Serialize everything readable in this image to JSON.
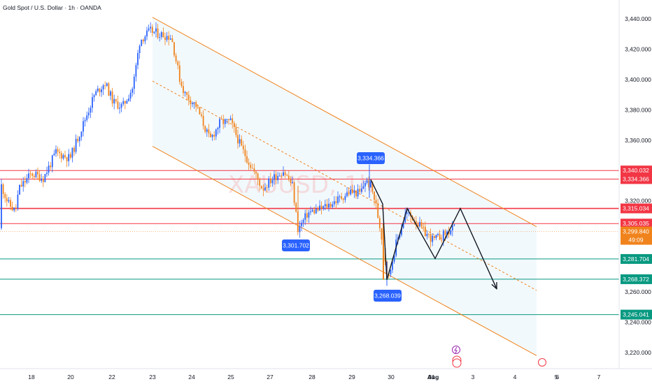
{
  "header": {
    "symbol_line": "Gold Spot / U.S. Dollar · 1h · OANDA"
  },
  "watermark": "XAUUSD, 1h",
  "colors": {
    "up": "#2962ff",
    "down": "#f0831c",
    "resistance": "#f23645",
    "support": "#089981",
    "channel": "#f0831c",
    "callout": "#2962ff",
    "current": "#f0831c"
  },
  "chart_data": {
    "type": "candlestick",
    "title": "",
    "timeframe": "1h",
    "ylim": [
      3210,
      3446
    ],
    "y_ticks": [
      3220,
      3240,
      3260,
      3280,
      3300,
      3320,
      3340,
      3360,
      3380,
      3400,
      3420,
      3440
    ],
    "y_tick_labels": [
      "3,220.000",
      "3,240.000",
      "3,260.000",
      "3,280.000",
      "3,300.000",
      "3,320.000",
      "3,340.000",
      "3,360.000",
      "3,380.000",
      "3,400.000",
      "3,420.000",
      "3,440.000"
    ],
    "x_ticks": [
      "18",
      "20",
      "22",
      "23",
      "24",
      "25",
      "27",
      "28",
      "29",
      "30",
      "31",
      "Aug",
      "3",
      "4",
      "5",
      "6",
      "7"
    ],
    "price_line_labels": [
      {
        "value": 3340.032,
        "label": "3,340.032",
        "kind": "resistance"
      },
      {
        "value": 3334.366,
        "label": "3,334.366",
        "kind": "resistance"
      },
      {
        "value": 3315.034,
        "label": "3,315.034",
        "kind": "resistance"
      },
      {
        "value": 3305.035,
        "label": "3,305.035",
        "kind": "resistance"
      },
      {
        "value": 3281.704,
        "label": "3,281.704",
        "kind": "support"
      },
      {
        "value": 3268.372,
        "label": "3,268.372",
        "kind": "support"
      },
      {
        "value": 3245.041,
        "label": "3,245.041",
        "kind": "support"
      }
    ],
    "current_price": {
      "value": 3299.84,
      "label": "3,299.840",
      "countdown": "49:09"
    },
    "callouts": [
      {
        "label": "3,334.366",
        "value": 3334.366,
        "date": "30"
      },
      {
        "label": "3,301.702",
        "value": 3301.702,
        "date": "28"
      },
      {
        "label": "3,268.039",
        "value": 3268.039,
        "date": "31"
      }
    ],
    "channel": {
      "upper": [
        {
          "date": "23",
          "value": 3441
        },
        {
          "date": "5",
          "value": 3303
        }
      ],
      "middle": [
        {
          "date": "23",
          "value": 3399
        },
        {
          "date": "5",
          "value": 3261
        }
      ],
      "lower": [
        {
          "date": "23",
          "value": 3356
        },
        {
          "date": "5",
          "value": 3218
        }
      ]
    },
    "projection": [
      3300,
      3282,
      3315,
      3262
    ],
    "legend": null
  }
}
